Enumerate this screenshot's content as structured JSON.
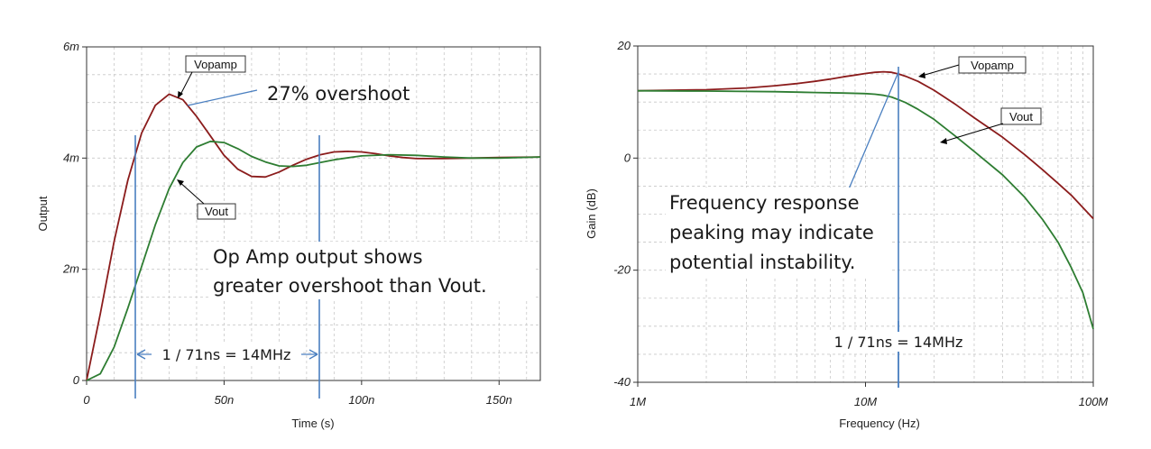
{
  "colors": {
    "vopamp": "#8b1c1c",
    "vout": "#2e7d32",
    "marker": "#4a7fc0",
    "grid": "#c8c8c8"
  },
  "chart_data": [
    {
      "type": "line",
      "xlabel": "Time (s)",
      "ylabel": "Output",
      "xlim": [
        0,
        165
      ],
      "ylim": [
        0,
        6
      ],
      "x_unit_note": "time in ns, voltage in m-units as labelled",
      "x_ticks": [
        "0",
        "50n",
        "100n",
        "150n"
      ],
      "y_ticks": [
        "0",
        "2m",
        "4m",
        "6m"
      ],
      "grid": true,
      "series": [
        {
          "name": "Vopamp",
          "x": [
            0,
            5,
            10,
            15,
            20,
            25,
            30,
            35,
            40,
            45,
            50,
            55,
            60,
            65,
            70,
            75,
            80,
            85,
            90,
            95,
            100,
            105,
            110,
            115,
            120,
            130,
            140,
            150,
            165
          ],
          "y": [
            0,
            1.2,
            2.5,
            3.6,
            4.45,
            4.95,
            5.15,
            5.05,
            4.75,
            4.4,
            4.05,
            3.8,
            3.67,
            3.66,
            3.75,
            3.87,
            3.98,
            4.06,
            4.11,
            4.12,
            4.11,
            4.08,
            4.04,
            4.01,
            3.99,
            3.99,
            4.0,
            4.01,
            4.02
          ]
        },
        {
          "name": "Vout",
          "x": [
            0,
            5,
            10,
            15,
            20,
            25,
            30,
            35,
            40,
            45,
            50,
            55,
            60,
            65,
            70,
            75,
            80,
            85,
            90,
            100,
            110,
            120,
            130,
            140,
            150,
            165
          ],
          "y": [
            0,
            0.12,
            0.6,
            1.3,
            2.05,
            2.8,
            3.45,
            3.92,
            4.2,
            4.3,
            4.28,
            4.17,
            4.03,
            3.93,
            3.86,
            3.85,
            3.87,
            3.92,
            3.97,
            4.04,
            4.06,
            4.05,
            4.02,
            4.0,
            4.0,
            4.02
          ]
        }
      ],
      "annotations": {
        "overshoot": "27% overshoot",
        "note_line1": "Op Amp output shows",
        "note_line2": "greater overshoot than Vout.",
        "period": "1 / 71ns = 14MHz"
      }
    },
    {
      "type": "line",
      "xlabel": "Frequency (Hz)",
      "ylabel": "Gain (dB)",
      "xlim": [
        1000000,
        100000000
      ],
      "ylim": [
        -40,
        20
      ],
      "x_scale": "log",
      "x_ticks": [
        "1M",
        "10M",
        "100M"
      ],
      "y_ticks": [
        "-40",
        "-20",
        "0",
        "20"
      ],
      "grid": true,
      "series": [
        {
          "name": "Vopamp",
          "x": [
            1,
            2,
            3,
            4,
            5,
            6,
            7,
            8,
            9,
            10,
            11,
            12,
            13,
            14,
            15,
            17,
            20,
            25,
            30,
            40,
            50,
            60,
            70,
            80,
            100
          ],
          "y": [
            12.0,
            12.2,
            12.5,
            12.9,
            13.3,
            13.7,
            14.1,
            14.5,
            14.8,
            15.1,
            15.3,
            15.4,
            15.3,
            15.0,
            14.6,
            13.7,
            12.1,
            9.5,
            7.2,
            3.7,
            0.6,
            -2.1,
            -4.5,
            -6.6,
            -10.8
          ]
        },
        {
          "name": "Vout",
          "x": [
            1,
            2,
            4,
            6,
            8,
            10,
            11,
            12,
            13,
            14,
            15,
            17,
            20,
            25,
            30,
            40,
            50,
            60,
            70,
            80,
            90,
            100
          ],
          "y": [
            12.0,
            11.95,
            11.85,
            11.7,
            11.6,
            11.5,
            11.4,
            11.2,
            10.9,
            10.4,
            9.9,
            8.7,
            6.9,
            3.8,
            1.2,
            -3.0,
            -7.0,
            -11.0,
            -15.0,
            -19.5,
            -24.0,
            -30.5
          ]
        }
      ],
      "annotations": {
        "note_line1": "Frequency response",
        "note_line2": "peaking may indicate",
        "note_line3": "potential instability.",
        "freq": "1 / 71ns = 14MHz"
      }
    }
  ]
}
